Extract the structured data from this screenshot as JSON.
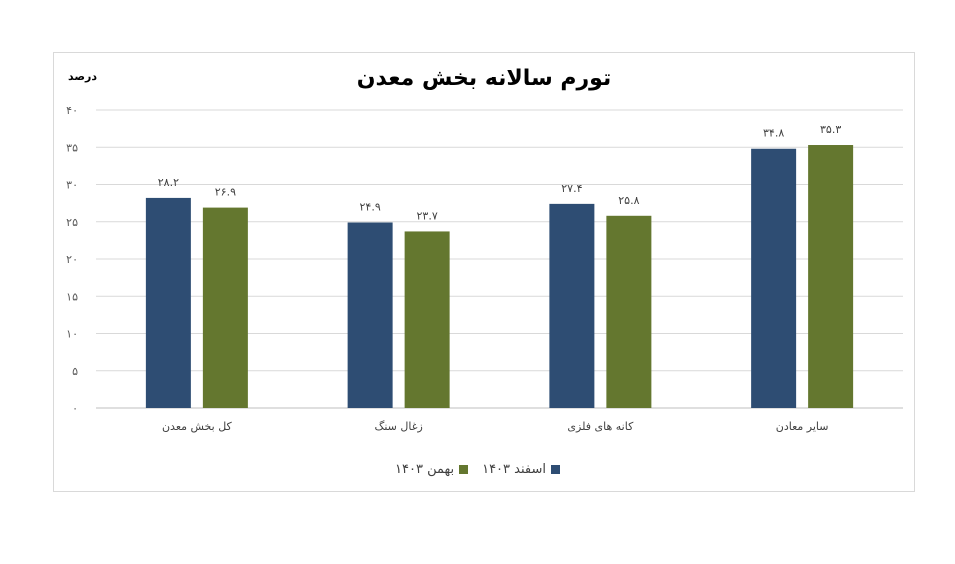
{
  "chart_data": {
    "type": "bar",
    "title": "تورم سالانه بخش معدن",
    "ylabel": "درصد",
    "ylim": [
      0,
      40
    ],
    "yticks": [
      0,
      5,
      10,
      15,
      20,
      25,
      30,
      35,
      40
    ],
    "ytick_labels": [
      "۰",
      "۵",
      "۱۰",
      "۱۵",
      "۲۰",
      "۲۵",
      "۳۰",
      "۳۵",
      "۴۰"
    ],
    "categories": [
      "کل بخش معدن",
      "زغال سنگ",
      "کانه های فلزی",
      "سایر معادن"
    ],
    "grid": true,
    "legend_position": "bottom",
    "series": [
      {
        "name": "اسفند ۱۴۰۳",
        "color": "#2e4d73",
        "values": [
          28.2,
          24.9,
          27.4,
          34.8
        ],
        "labels": [
          "۲۸.۲",
          "۲۴.۹",
          "۲۷.۴",
          "۳۴.۸"
        ]
      },
      {
        "name": "بهمن ۱۴۰۳",
        "color": "#64772f",
        "values": [
          26.9,
          23.7,
          25.8,
          35.3
        ],
        "labels": [
          "۲۶.۹",
          "۲۳.۷",
          "۲۵.۸",
          "۳۵.۳"
        ]
      }
    ]
  }
}
